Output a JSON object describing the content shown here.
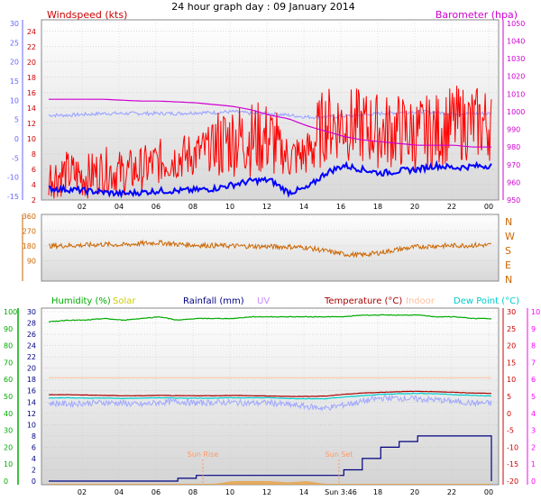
{
  "header": {
    "title": "24 hour graph day : 09 January 2014"
  },
  "colors": {
    "wind": "#ff0000",
    "gust_avg": "#0000ff",
    "baro": "#d000d0",
    "baro_raw": "#a0a8ff",
    "direction": "#cc6600",
    "humidity": "#00aa00",
    "solar": "#cccc00",
    "rain": "#000080",
    "uv": "#cc88ff",
    "temperature": "#aa0000",
    "indoor": "#ffc0a0",
    "dewpoint": "#00cccc",
    "left_axis_blue": "#6666ff",
    "rain_axis": "#000080",
    "temp_axis": "#cc0000",
    "uv_axis": "#ff00ff"
  },
  "chart_data": [
    {
      "type": "line",
      "panel": "wind_barometer",
      "title_left": "Windspeed (kts)",
      "title_right": "Barometer (hpa)",
      "x_ticks": [
        "02",
        "04",
        "06",
        "08",
        "10",
        "12",
        "14",
        "16",
        "18",
        "20",
        "22",
        "00"
      ],
      "y_left_ticks": [
        "2",
        "4",
        "6",
        "8",
        "10",
        "12",
        "14",
        "16",
        "18",
        "20",
        "22",
        "24"
      ],
      "y_left_outer_ticks": [
        "-15",
        "-10",
        "-5",
        "0",
        "5",
        "10",
        "15",
        "20",
        "25",
        "30"
      ],
      "y_right_ticks": [
        "950",
        "960",
        "970",
        "980",
        "990",
        "1000",
        "1010",
        "1020",
        "1030",
        "1040",
        "1050"
      ],
      "ylim_left": [
        2,
        25.5
      ],
      "ylim_right": [
        950,
        1052
      ],
      "series": [
        {
          "key": "wind_speed",
          "values": [
            5,
            5.5,
            5,
            6,
            5.5,
            6,
            7,
            7.5,
            8,
            9,
            10,
            10,
            10,
            7.5,
            8,
            12,
            12,
            11.5,
            11,
            11,
            10.5,
            11,
            12,
            12,
            12
          ]
        },
        {
          "key": "wind_avg",
          "values": [
            3.5,
            3.4,
            3.2,
            3.0,
            2.8,
            3.0,
            3.2,
            3.2,
            3.3,
            3.5,
            4.0,
            4.5,
            4.6,
            3.0,
            3.5,
            5.5,
            6.5,
            6.0,
            5.5,
            5.8,
            6.0,
            6.5,
            6.2,
            6.4,
            6.5
          ]
        },
        {
          "key": "barometer",
          "values": [
            1007,
            1007,
            1007,
            1007,
            1006.5,
            1006,
            1006,
            1005.5,
            1005,
            1004,
            1003,
            1001,
            998,
            996,
            992,
            989,
            986,
            984,
            983,
            982,
            981,
            981,
            981,
            980,
            980
          ]
        },
        {
          "key": "barometer_trace",
          "values": [
            998,
            998,
            998.5,
            999,
            999,
            999,
            999,
            999,
            999.5,
            999.5,
            1000,
            999,
            999,
            998,
            997,
            997,
            997.5,
            998,
            999,
            999.5,
            1000,
            999.5,
            999,
            999,
            999
          ]
        }
      ]
    },
    {
      "type": "line",
      "panel": "wind_direction",
      "y_left_ticks": [
        "90",
        "180",
        "270",
        "360"
      ],
      "y_right_labels": [
        "N",
        "W",
        "S",
        "E",
        "N"
      ],
      "ylim": [
        0,
        360
      ],
      "series": [
        {
          "key": "direction",
          "values": [
            180,
            182,
            185,
            190,
            186,
            195,
            200,
            190,
            185,
            182,
            180,
            178,
            176,
            175,
            170,
            150,
            130,
            125,
            140,
            160,
            175,
            180,
            182,
            184,
            185
          ]
        }
      ]
    },
    {
      "type": "line",
      "panel": "multi",
      "legend": [
        "Humidity (%)",
        "Solar",
        "Rainfall (mm)",
        "UV",
        "Temperature (°C)",
        "Indoor",
        "Dew Point (°C)"
      ],
      "x_ticks": [
        "02",
        "04",
        "06",
        "08",
        "10",
        "12",
        "14",
        "Sun 3:46",
        "18",
        "20",
        "22",
        "00"
      ],
      "humidity_ticks": [
        "0",
        "10",
        "20",
        "30",
        "40",
        "50",
        "60",
        "70",
        "80",
        "90",
        "100"
      ],
      "rain_ticks": [
        "0",
        "2",
        "4",
        "6",
        "8",
        "10",
        "12",
        "14",
        "16",
        "18",
        "20",
        "22",
        "24",
        "26",
        "28",
        "30"
      ],
      "temp_ticks": [
        "-20",
        "-15",
        "-10",
        "-5",
        "0",
        "5",
        "10",
        "15",
        "20",
        "25",
        "30"
      ],
      "uv_ticks": [
        "0",
        "1",
        "2",
        "3",
        "4",
        "5",
        "6",
        "7",
        "8",
        "9",
        "10"
      ],
      "annotations": [
        "Sun Rise",
        "Sun Set"
      ],
      "series": [
        {
          "key": "humidity",
          "values": [
            94,
            95,
            95,
            96,
            95,
            96,
            97,
            95,
            96,
            96,
            96,
            97,
            97,
            97,
            97,
            97,
            97,
            98,
            98,
            98,
            98,
            97,
            97,
            96,
            96
          ]
        },
        {
          "key": "temperature",
          "values": [
            5.5,
            5.5,
            5.4,
            5.3,
            5.2,
            5.2,
            5.3,
            5.2,
            5.2,
            5.2,
            5.3,
            5.2,
            5.1,
            5.0,
            5.0,
            5.1,
            5.6,
            6.0,
            6.2,
            6.4,
            6.5,
            6.4,
            6.2,
            6.0,
            5.9
          ]
        },
        {
          "key": "dewpoint",
          "values": [
            4.5,
            4.6,
            4.5,
            4.5,
            4.4,
            4.5,
            4.6,
            4.5,
            4.5,
            4.5,
            4.6,
            4.6,
            4.6,
            4.4,
            4.3,
            4.3,
            4.8,
            5.2,
            5.6,
            5.8,
            5.9,
            5.8,
            5.5,
            5.3,
            5.1
          ]
        },
        {
          "key": "indoor",
          "values": [
            10.5,
            10.5,
            10.5,
            10.5,
            10.5,
            10.5,
            10.5,
            10.5,
            10.5,
            10.5,
            10.5,
            10.5,
            10.5,
            10.5,
            10.5,
            10.5,
            10.5,
            10.5,
            10.5,
            10.5,
            10.5,
            10.5,
            10.5,
            10.5,
            10.5
          ]
        },
        {
          "key": "chill_trace",
          "values": [
            3,
            2.8,
            3,
            3.2,
            3,
            2.5,
            3.2,
            3.5,
            3,
            3.2,
            3.2,
            3,
            3.1,
            2.5,
            2,
            1.5,
            2.5,
            3.5,
            4.5,
            4.5,
            4.2,
            4,
            3.5,
            3,
            3
          ]
        },
        {
          "key": "rainfall",
          "values": [
            0,
            0,
            0,
            0,
            0,
            0,
            0,
            0.5,
            1,
            1,
            1,
            1,
            1,
            1,
            1,
            1,
            2,
            4,
            6,
            7,
            8,
            8,
            8,
            8,
            0
          ]
        },
        {
          "key": "solar",
          "values": [
            0,
            0,
            0,
            0,
            0,
            0,
            0,
            0,
            0,
            0,
            1,
            1,
            1,
            0.5,
            1,
            0,
            0,
            0,
            0,
            0,
            0,
            0,
            0,
            0,
            0
          ]
        }
      ]
    }
  ]
}
